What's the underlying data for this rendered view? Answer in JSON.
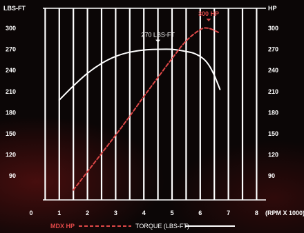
{
  "chart_data": {
    "type": "line",
    "left_axis_label": "LBS-FT",
    "right_axis_label": "HP",
    "x_unit_label": "(RPM X 1000)",
    "x_ticks": [
      "0",
      "1",
      "2",
      "3",
      "4",
      "5",
      "6",
      "7",
      "8"
    ],
    "y_ticks": [
      "300",
      "270",
      "240",
      "210",
      "180",
      "150",
      "120",
      "90"
    ],
    "xlim": [
      0,
      8
    ],
    "ylim": [
      60,
      320
    ],
    "grid": true,
    "colors": {
      "hp": "#e04848",
      "torque": "#ffffff",
      "grid": "#ffffff"
    },
    "series": [
      {
        "name": "TORQUE (LBS-FT)",
        "style": "solid",
        "x": [
          1.0,
          1.5,
          2.0,
          2.5,
          3.0,
          3.5,
          4.0,
          4.5,
          5.0,
          5.5,
          5.8,
          6.1,
          6.3,
          6.5,
          6.7
        ],
        "y": [
          198,
          218,
          236,
          250,
          260,
          266,
          269,
          270,
          270,
          267,
          264,
          257,
          248,
          233,
          213
        ]
      },
      {
        "name": "MDX HP",
        "style": "dashed",
        "x": [
          1.5,
          2.0,
          2.5,
          3.0,
          3.5,
          4.0,
          4.5,
          5.0,
          5.5,
          6.0,
          6.3,
          6.7
        ],
        "y": [
          70,
          96,
          122,
          148,
          175,
          203,
          230,
          257,
          282,
          298,
          300,
          293
        ]
      }
    ],
    "annotations": [
      {
        "text": "270 LBS-FT",
        "x": 4.5,
        "y": 270,
        "series": "torque"
      },
      {
        "text": "300 HP",
        "x": 6.3,
        "y": 300,
        "series": "hp"
      }
    ],
    "legend": {
      "placement": "bottom",
      "hp_label": "MDX HP",
      "torque_label": "TORQUE (LBS-FT)"
    }
  }
}
